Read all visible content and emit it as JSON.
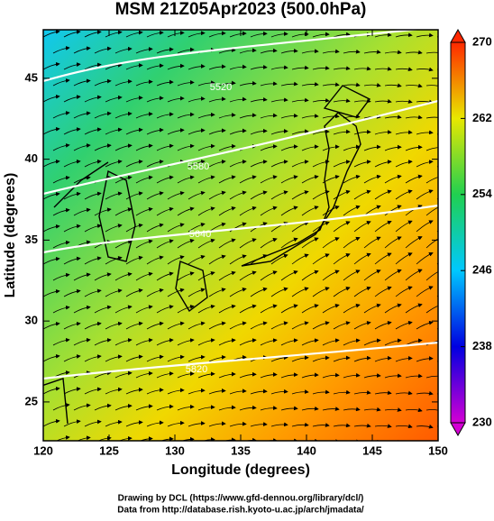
{
  "chart_data": {
    "type": "streamline",
    "title": "MSM 21Z05Apr2023 (500.0hPa)",
    "x_label": "Longitude (degrees)",
    "y_label": "Latitude  (degrees)",
    "credits": [
      "Drawing by DCL (https://www.gfd-dennou.org/library/dcl/)",
      "Data from http://database.rish.kyoto-u.ac.jp/arch/jmadata/"
    ],
    "xlim": [
      120,
      150
    ],
    "xticks": [
      120,
      125,
      130,
      135,
      140,
      145,
      150
    ],
    "ylim": [
      22.6,
      48.0
    ],
    "yticks": [
      25,
      30,
      35,
      40,
      45
    ],
    "contour_labels": [
      "5520",
      "5580",
      "5640",
      "5820"
    ],
    "colorbar": {
      "range": [
        230,
        270
      ],
      "ticks": [
        230,
        238,
        246,
        254,
        262,
        270
      ],
      "colors": [
        "#d400d4",
        "#0000e0",
        "#00c8ff",
        "#20d050",
        "#e8e800",
        "#ff2800"
      ]
    }
  }
}
